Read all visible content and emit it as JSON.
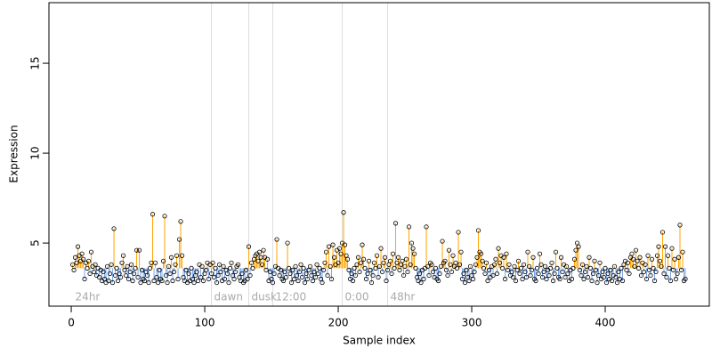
{
  "chart_data": {
    "type": "stem",
    "x_label": "Sample index",
    "y_label": "Expression",
    "xlim": [
      -16.7,
      478
    ],
    "ylim": [
      1.49,
      18.37
    ],
    "xticks": [
      0,
      100,
      200,
      300,
      400
    ],
    "yticks": [
      5,
      10,
      15
    ],
    "baseline": 3.6,
    "above_color": "#FFA500",
    "below_color": "#7BA7E6",
    "point_color": "#000000",
    "vlines": [
      105,
      133,
      151,
      203,
      237
    ],
    "vline_color": "#dddddd",
    "annotations": [
      "24hr",
      "dawn",
      "dusk",
      "12:00",
      "0:00",
      "48hr"
    ],
    "x": [
      1,
      2,
      3,
      4,
      5,
      6,
      7,
      8,
      9,
      10,
      11,
      12,
      13,
      14,
      15,
      16,
      17,
      18,
      19,
      20,
      21,
      22,
      23,
      24,
      25,
      26,
      27,
      28,
      29,
      30,
      31,
      32,
      33,
      34,
      35,
      36,
      37,
      38,
      39,
      40,
      41,
      42,
      43,
      44,
      45,
      46,
      47,
      48,
      49,
      50,
      51,
      52,
      53,
      54,
      55,
      56,
      57,
      58,
      59,
      60,
      61,
      62,
      63,
      64,
      65,
      66,
      67,
      68,
      69,
      70,
      71,
      72,
      73,
      74,
      75,
      76,
      77,
      78,
      79,
      80,
      81,
      82,
      83,
      84,
      85,
      86,
      87,
      88,
      89,
      90,
      91,
      92,
      93,
      94,
      95,
      96,
      97,
      98,
      99,
      100,
      101,
      102,
      103,
      104,
      105,
      106,
      107,
      108,
      109,
      110,
      111,
      112,
      113,
      114,
      115,
      116,
      117,
      118,
      119,
      120,
      121,
      122,
      123,
      124,
      125,
      126,
      127,
      128,
      129,
      130,
      131,
      132,
      133,
      134,
      135,
      136,
      137,
      138,
      139,
      140,
      141,
      142,
      143,
      144,
      145,
      146,
      147,
      148,
      149,
      150,
      151,
      152,
      153,
      154,
      155,
      156,
      157,
      158,
      159,
      160,
      161,
      162,
      163,
      164,
      165,
      166,
      167,
      168,
      169,
      170,
      171,
      172,
      173,
      174,
      175,
      176,
      177,
      178,
      179,
      180,
      181,
      182,
      183,
      184,
      185,
      186,
      187,
      188,
      189,
      190,
      191,
      192,
      193,
      194,
      195,
      196,
      197,
      198,
      199,
      200,
      201,
      202,
      203,
      204,
      205,
      206,
      207,
      208,
      209,
      210,
      211,
      212,
      213,
      214,
      215,
      216,
      217,
      218,
      219,
      220,
      221,
      222,
      223,
      224,
      225,
      226,
      227,
      228,
      229,
      230,
      231,
      232,
      233,
      234,
      235,
      236,
      237,
      238,
      239,
      240,
      241,
      242,
      243,
      244,
      245,
      246,
      247,
      248,
      249,
      250,
      251,
      252,
      253,
      254,
      255,
      256,
      257,
      258,
      259,
      260,
      261,
      262,
      263,
      264,
      265,
      266,
      267,
      268,
      269,
      270,
      271,
      272,
      273,
      274,
      275,
      276,
      277,
      278,
      279,
      280,
      281,
      282,
      283,
      284,
      285,
      286,
      287,
      288,
      289,
      290,
      291,
      292,
      293,
      294,
      295,
      296,
      297,
      298,
      299,
      300,
      301,
      302,
      303,
      304,
      305,
      306,
      307,
      308,
      309,
      310,
      311,
      312,
      313,
      314,
      315,
      316,
      317,
      318,
      319,
      320,
      321,
      322,
      323,
      324,
      325,
      326,
      327,
      328,
      329,
      330,
      331,
      332,
      333,
      334,
      335,
      336,
      337,
      338,
      339,
      340,
      341,
      342,
      343,
      344,
      345,
      346,
      347,
      348,
      349,
      350,
      351,
      352,
      353,
      354,
      355,
      356,
      357,
      358,
      359,
      360,
      361,
      362,
      363,
      364,
      365,
      366,
      367,
      368,
      369,
      370,
      371,
      372,
      373,
      374,
      375,
      376,
      377,
      378,
      379,
      380,
      381,
      382,
      383,
      384,
      385,
      386,
      387,
      388,
      389,
      390,
      391,
      392,
      393,
      394,
      395,
      396,
      397,
      398,
      399,
      400,
      401,
      402,
      403,
      404,
      405,
      406,
      407,
      408,
      409,
      410,
      411,
      412,
      413,
      414,
      415,
      416,
      417,
      418,
      419,
      420,
      421,
      422,
      423,
      424,
      425,
      426,
      427,
      428,
      429,
      430,
      431,
      432,
      433,
      434,
      435,
      436,
      437,
      438,
      439,
      440,
      441,
      442,
      443,
      444,
      445,
      446,
      447,
      448,
      449,
      450,
      451,
      452,
      453,
      454,
      455,
      456,
      457,
      458,
      459,
      460
    ],
    "values": [
      3.8,
      3.5,
      4.2,
      3.9,
      4.8,
      4.3,
      4.0,
      4.4,
      4.1,
      3.0,
      3.9,
      3.6,
      4.0,
      3.3,
      4.5,
      3.7,
      3.4,
      3.8,
      3.2,
      3.6,
      3.1,
      3.5,
      2.9,
      3.4,
      3.0,
      2.8,
      3.7,
      2.9,
      3.3,
      3.8,
      2.8,
      5.8,
      3.2,
      3.6,
      2.9,
      3.3,
      3.1,
      3.9,
      4.3,
      3.5,
      3.2,
      3.7,
      3.0,
      3.4,
      3.8,
      2.9,
      3.3,
      3.6,
      4.6,
      3.1,
      4.6,
      2.8,
      3.5,
      3.0,
      2.9,
      3.4,
      3.2,
      2.8,
      3.6,
      3.9,
      6.6,
      2.9,
      3.9,
      3.1,
      2.8,
      3.5,
      3.0,
      2.9,
      4.0,
      6.5,
      3.2,
      2.8,
      3.7,
      3.3,
      4.2,
      2.9,
      3.4,
      3.8,
      4.3,
      3.0,
      5.2,
      6.2,
      4.3,
      3.1,
      2.9,
      3.5,
      2.8,
      3.3,
      2.9,
      3.6,
      3.0,
      2.8,
      3.2,
      3.4,
      2.9,
      3.8,
      3.1,
      3.7,
      2.9,
      3.3,
      3.5,
      3.9,
      3.0,
      3.8,
      3.3,
      3.9,
      3.1,
      3.6,
      2.8,
      3.2,
      3.8,
      3.4,
      2.9,
      3.7,
      3.0,
      3.5,
      3.3,
      2.8,
      3.6,
      3.9,
      3.2,
      3.0,
      3.4,
      3.7,
      3.8,
      3.1,
      2.9,
      3.3,
      2.8,
      2.9,
      3.5,
      3.0,
      4.8,
      3.2,
      3.9,
      3.6,
      4.1,
      4.3,
      4.4,
      4.0,
      4.5,
      4.2,
      3.8,
      4.6,
      4.2,
      3.5,
      4.1,
      2.9,
      3.4,
      3.0,
      2.8,
      3.3,
      3.7,
      5.2,
      3.6,
      3.2,
      3.5,
      3.0,
      2.9,
      3.4,
      3.1,
      5.0,
      3.6,
      3.3,
      2.8,
      3.5,
      3.0,
      3.7,
      3.2,
      2.9,
      3.4,
      3.8,
      3.1,
      3.6,
      2.8,
      3.3,
      3.0,
      3.5,
      3.7,
      3.2,
      2.9,
      3.4,
      3.1,
      3.8,
      3.3,
      3.6,
      3.0,
      2.8,
      3.5,
      3.9,
      4.5,
      3.2,
      4.8,
      3.7,
      3.0,
      4.9,
      4.2,
      3.8,
      4.6,
      3.9,
      4.7,
      4.4,
      5.0,
      6.7,
      4.9,
      4.3,
      4.1,
      3.5,
      3.0,
      3.3,
      2.9,
      3.6,
      3.2,
      3.8,
      4.2,
      3.4,
      3.9,
      4.9,
      4.1,
      3.6,
      3.0,
      3.3,
      4.0,
      3.5,
      2.8,
      3.2,
      3.9,
      3.6,
      4.3,
      3.1,
      3.7,
      4.7,
      3.4,
      3.9,
      4.2,
      2.9,
      3.5,
      3.8,
      4.0,
      3.3,
      4.4,
      3.6,
      6.1,
      3.9,
      4.2,
      3.5,
      3.8,
      4.0,
      3.2,
      3.7,
      4.1,
      3.4,
      5.9,
      3.8,
      5.0,
      4.7,
      4.4,
      3.6,
      3.1,
      2.9,
      3.3,
      2.8,
      3.5,
      3.0,
      3.6,
      5.9,
      3.7,
      3.2,
      3.9,
      3.8,
      3.4,
      3.1,
      3.6,
      3.0,
      2.9,
      3.3,
      3.7,
      5.1,
      3.9,
      4.0,
      3.5,
      3.2,
      4.6,
      3.8,
      3.4,
      4.3,
      3.7,
      3.9,
      3.6,
      5.6,
      3.8,
      4.5,
      3.0,
      3.3,
      2.8,
      3.5,
      3.1,
      2.9,
      3.7,
      3.2,
      3.0,
      3.4,
      3.8,
      4.2,
      5.7,
      4.5,
      4.4,
      4.0,
      3.6,
      3.3,
      3.9,
      2.9,
      3.5,
      3.1,
      3.7,
      3.2,
      3.8,
      4.1,
      3.3,
      4.7,
      3.9,
      4.3,
      3.6,
      4.2,
      3.0,
      4.4,
      3.5,
      3.8,
      3.2,
      3.4,
      3.1,
      3.7,
      2.9,
      3.5,
      4.0,
      3.3,
      3.6,
      3.0,
      3.8,
      3.4,
      3.1,
      4.5,
      3.7,
      3.2,
      3.5,
      4.2,
      3.0,
      2.9,
      3.6,
      3.3,
      4.4,
      3.8,
      3.1,
      3.4,
      3.7,
      3.0,
      3.5,
      3.2,
      3.6,
      3.9,
      2.9,
      3.3,
      4.5,
      3.6,
      3.1,
      3.0,
      4.2,
      3.4,
      3.8,
      3.1,
      3.7,
      3.3,
      2.9,
      3.5,
      3.0,
      3.6,
      4.1,
      4.6,
      5.0,
      4.8,
      3.5,
      3.2,
      3.8,
      3.0,
      3.4,
      3.7,
      3.1,
      4.2,
      3.6,
      2.9,
      3.3,
      4.0,
      3.5,
      2.8,
      3.2,
      3.9,
      3.0,
      3.4,
      3.1,
      3.6,
      2.8,
      3.3,
      3.0,
      3.5,
      2.9,
      3.2,
      3.7,
      3.1,
      2.8,
      3.4,
      3.0,
      3.6,
      2.9,
      3.8,
      4.0,
      3.5,
      3.9,
      3.3,
      4.2,
      4.4,
      4.1,
      3.7,
      4.6,
      4.0,
      3.6,
      4.2,
      3.2,
      3.9,
      3.4,
      3.8,
      3.0,
      4.3,
      3.5,
      3.2,
      4.1,
      3.6,
      2.9,
      3.4,
      4.3,
      4.8,
      4.0,
      3.7,
      5.6,
      3.3,
      4.8,
      3.1,
      4.3,
      3.6,
      2.9,
      4.7,
      3.5,
      4.1,
      3.0,
      3.3,
      4.2,
      6.0,
      3.5,
      4.5,
      2.9,
      3.0
    ]
  }
}
